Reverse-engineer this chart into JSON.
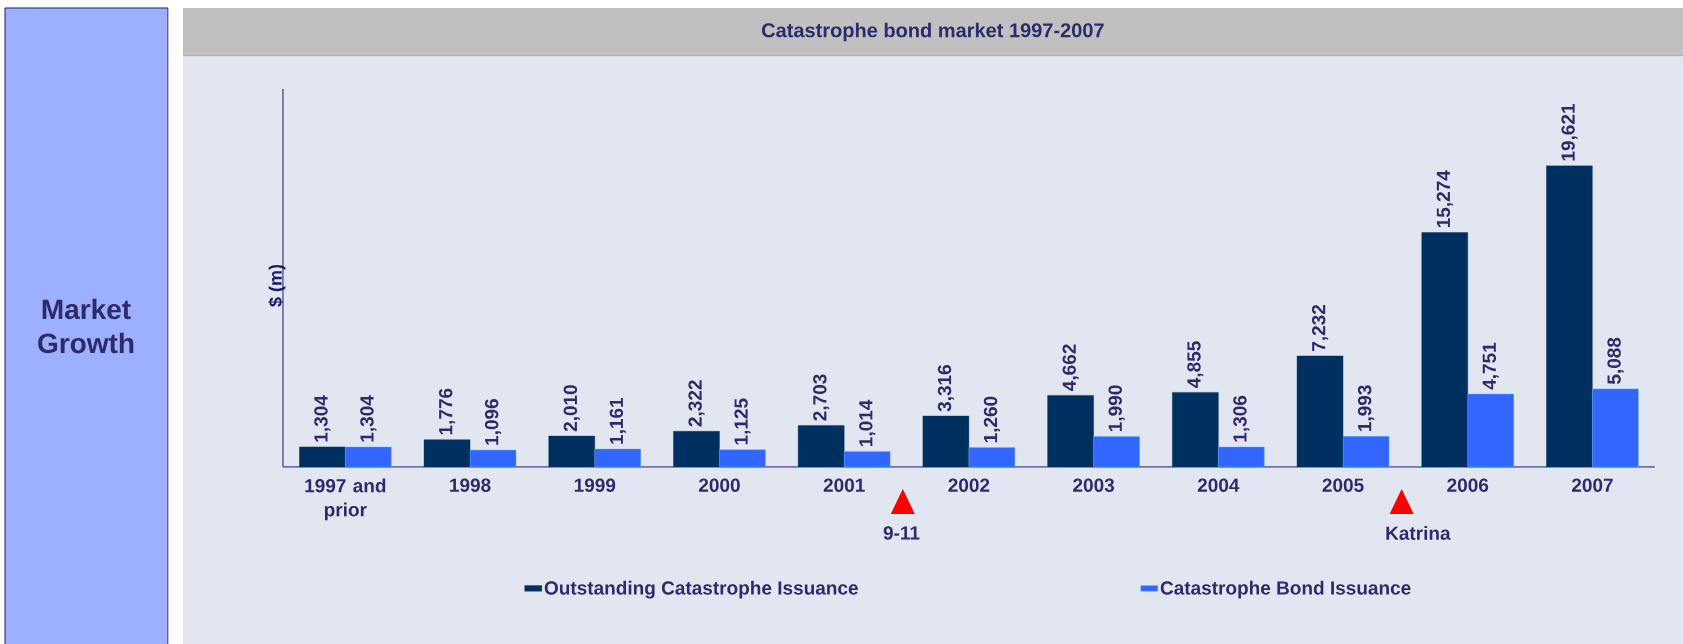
{
  "chart_data": {
    "type": "bar",
    "title": "Catastrophe bond market 1997-2007",
    "ylabel": "$ (m)",
    "categories": [
      "1997 and prior",
      "1998",
      "1999",
      "2000",
      "2001",
      "2002",
      "2003",
      "2004",
      "2005",
      "2006",
      "2007"
    ],
    "series": [
      {
        "name": "Outstanding Catastrophe Issuance",
        "color": "#00305f",
        "values": [
          1304,
          1776,
          2010,
          2322,
          2703,
          3316,
          4662,
          4855,
          7232,
          15274,
          19621
        ],
        "value_labels": [
          "1,304",
          "1,776",
          "2,010",
          "2,322",
          "2,703",
          "3,316",
          "4,662",
          "4,855",
          "7,232",
          "15,274",
          "19,621"
        ]
      },
      {
        "name": "Catastrophe Bond Issuance",
        "color": "#3366ff",
        "values": [
          1304,
          1096,
          1161,
          1125,
          1014,
          1260,
          1990,
          1306,
          1993,
          4751,
          5088
        ],
        "value_labels": [
          "1,304",
          "1,096",
          "1,161",
          "1,125",
          "1,014",
          "1,260",
          "1,990",
          "1,306",
          "1,993",
          "4,751",
          "5,088"
        ]
      }
    ],
    "annotations": [
      "9-11",
      "Katrina",
      "Market Growth"
    ],
    "legend": "bottom",
    "tick_labels": "x"
  }
}
